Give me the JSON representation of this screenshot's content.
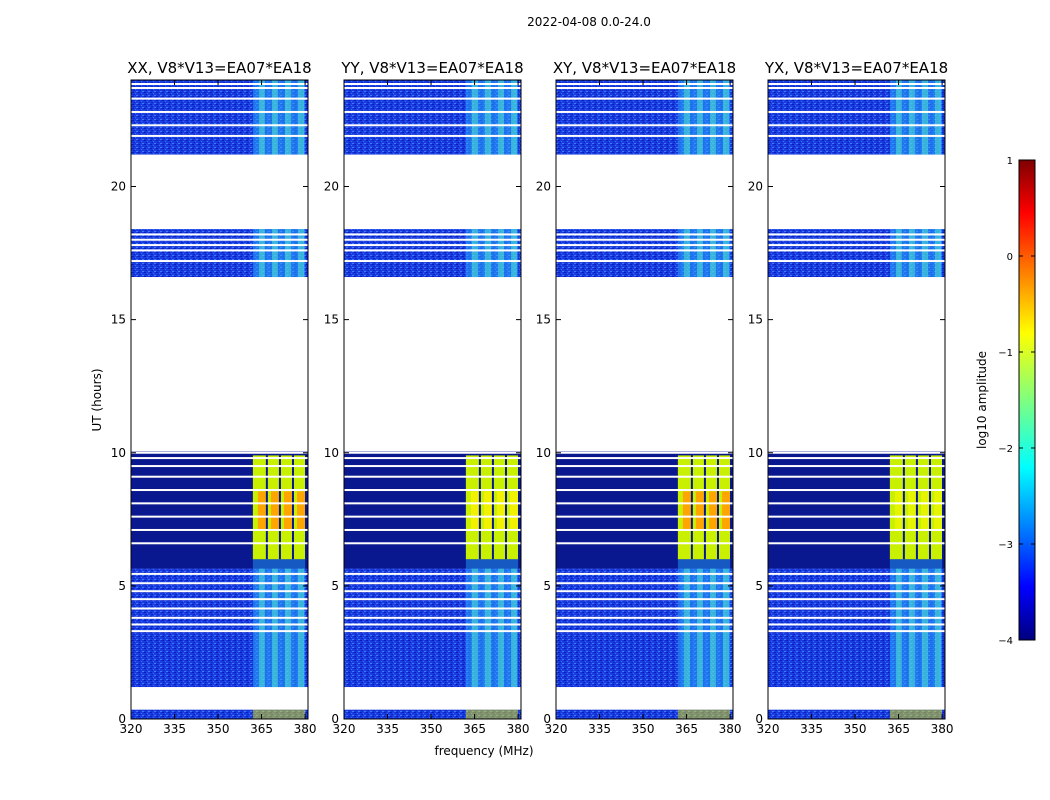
{
  "figure_title": "2022-04-08 0.0-24.0",
  "chart_data": {
    "type": "heatmap",
    "suptitle": "2022-04-08 0.0-24.0",
    "xlabel": "frequency (MHz)",
    "ylabel": "UT (hours)",
    "xlim": [
      320,
      381
    ],
    "ylim": [
      0,
      24
    ],
    "xticks": [
      "320",
      "335",
      "350",
      "365",
      "380"
    ],
    "yticks": [
      "0",
      "5",
      "10",
      "15",
      "20"
    ],
    "panels": [
      {
        "title": "XX, V8*V13=EA07*EA18",
        "peak_color": "#ffa500"
      },
      {
        "title": "YY, V8*V13=EA07*EA18",
        "peak_color": "#f2f200"
      },
      {
        "title": "XY, V8*V13=EA07*EA18",
        "peak_color": "#ffa500"
      },
      {
        "title": "YX, V8*V13=EA07*EA18",
        "peak_color": "#e5f500"
      }
    ],
    "data_segments_hours": [
      {
        "from": 0.0,
        "to": 0.35,
        "level": "edge"
      },
      {
        "from": 1.2,
        "to": 5.65,
        "level": "moderate"
      },
      {
        "from": 5.65,
        "to": 10.05,
        "level": "strong-rfi"
      },
      {
        "from": 16.6,
        "to": 18.4,
        "level": "moderate"
      },
      {
        "from": 21.2,
        "to": 24.0,
        "level": "moderate"
      }
    ],
    "rfi_band_mhz": [
      362,
      380
    ],
    "colorbar": {
      "label": "log10 amplitude",
      "ticks": [
        "1",
        "0",
        "−1",
        "−2",
        "−3",
        "−4"
      ],
      "range": [
        -4,
        1
      ],
      "colormap": "jet"
    }
  }
}
